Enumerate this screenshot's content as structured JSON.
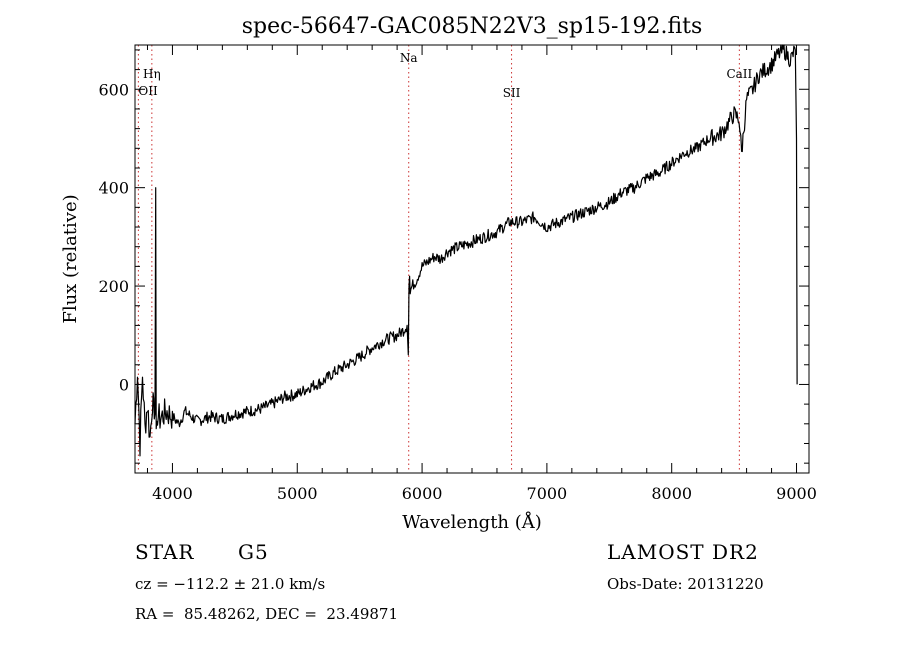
{
  "chart_data": {
    "type": "line",
    "title": "spec-56647-GAC085N22V3_sp15-192.fits",
    "xlabel": "Wavelength (Å)",
    "ylabel": "Flux (relative)",
    "xlim": [
      3700,
      9100
    ],
    "ylim": [
      -180,
      690
    ],
    "x_ticks": [
      4000,
      5000,
      6000,
      7000,
      8000,
      9000
    ],
    "y_ticks": [
      0,
      200,
      400,
      600
    ],
    "grid": false,
    "legend": "none",
    "line_color": "#000000",
    "marker_color": "#cc3333",
    "series": [
      {
        "x": [
          3700,
          3720,
          3740,
          3760,
          3780,
          3800,
          3820,
          3840,
          3855,
          3860,
          3866,
          3870,
          3880,
          3900,
          3950,
          4000,
          4050,
          4100,
          4200,
          4300,
          4400,
          4500,
          4600,
          4700,
          4800,
          4900,
          5000,
          5100,
          5200,
          5300,
          5400,
          5500,
          5600,
          5700,
          5800,
          5850,
          5880,
          5890,
          5895,
          5900,
          5905,
          5920,
          5950,
          6000,
          6050,
          6100,
          6150,
          6200,
          6300,
          6400,
          6500,
          6600,
          6700,
          6800,
          6900,
          7000,
          7100,
          7200,
          7300,
          7400,
          7500,
          7600,
          7700,
          7800,
          7900,
          8000,
          8100,
          8200,
          8300,
          8400,
          8450,
          8500,
          8540,
          8560,
          8600,
          8650,
          8700,
          8750,
          8800,
          8850,
          8900,
          8950,
          8990,
          9000,
          9005
        ],
        "y": [
          -80,
          30,
          -120,
          20,
          -90,
          -40,
          -110,
          -30,
          -70,
          -60,
          400,
          -90,
          -60,
          -70,
          -55,
          -65,
          -80,
          -55,
          -75,
          -65,
          -70,
          -60,
          -55,
          -50,
          -40,
          -25,
          -20,
          -5,
          5,
          25,
          40,
          55,
          75,
          90,
          100,
          110,
          120,
          60,
          200,
          220,
          190,
          200,
          210,
          240,
          250,
          260,
          255,
          270,
          280,
          290,
          300,
          310,
          330,
          330,
          340,
          320,
          330,
          340,
          350,
          360,
          370,
          390,
          400,
          420,
          430,
          450,
          470,
          480,
          500,
          510,
          530,
          550,
          540,
          470,
          580,
          600,
          630,
          640,
          650,
          670,
          680,
          660,
          680,
          500,
          0
        ]
      }
    ],
    "lines": [
      {
        "label": "OII",
        "x": 3727
      },
      {
        "label": "Hη",
        "x": 3835
      },
      {
        "label": "Na",
        "x": 5893
      },
      {
        "label": "SII",
        "x": 6717
      },
      {
        "label": "CaII",
        "x": 8542
      }
    ]
  },
  "info": {
    "class": "STAR",
    "subclass": "G5",
    "survey": "LAMOST DR2",
    "cz": "cz = −112.2 ± 21.0 km/s",
    "obsdate": "Obs-Date: 20131220",
    "radec": "RA =  85.48262, DEC =  23.49871"
  }
}
